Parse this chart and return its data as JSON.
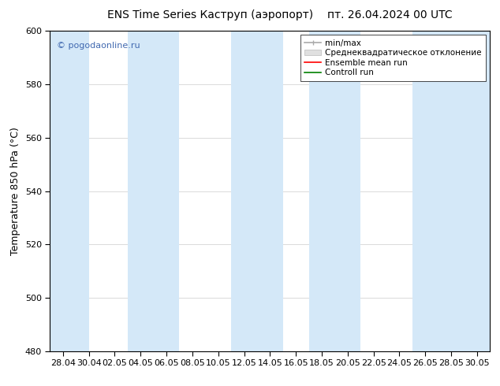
{
  "title_left": "ENS Time Series Каструп (аэропорт)",
  "title_right": "пт. 26.04.2024 00 UTC",
  "ylabel": "Temperature 850 hPa (°C)",
  "ylim": [
    480,
    600
  ],
  "yticks": [
    480,
    500,
    520,
    540,
    560,
    580,
    600
  ],
  "x_labels": [
    "28.04",
    "30.04",
    "02.05",
    "04.05",
    "06.05",
    "08.05",
    "10.05",
    "12.05",
    "14.05",
    "16.05",
    "18.05",
    "20.05",
    "22.05",
    "24.05",
    "26.05",
    "28.05",
    "30.05"
  ],
  "watermark": "© pogodaonline.ru",
  "watermark_color": "#4169B0",
  "band_color": "#D4E8F8",
  "background_color": "#ffffff",
  "plot_bg_color": "#ffffff",
  "legend_labels": [
    "min/max",
    "Среднеквадратическое отклонение",
    "Ensemble mean run",
    "Controll run"
  ],
  "legend_colors": [
    "#aaaaaa",
    "#cccccc",
    "#ff0000",
    "#008000"
  ],
  "title_fontsize": 10,
  "axis_fontsize": 9,
  "tick_fontsize": 8,
  "legend_fontsize": 7.5
}
